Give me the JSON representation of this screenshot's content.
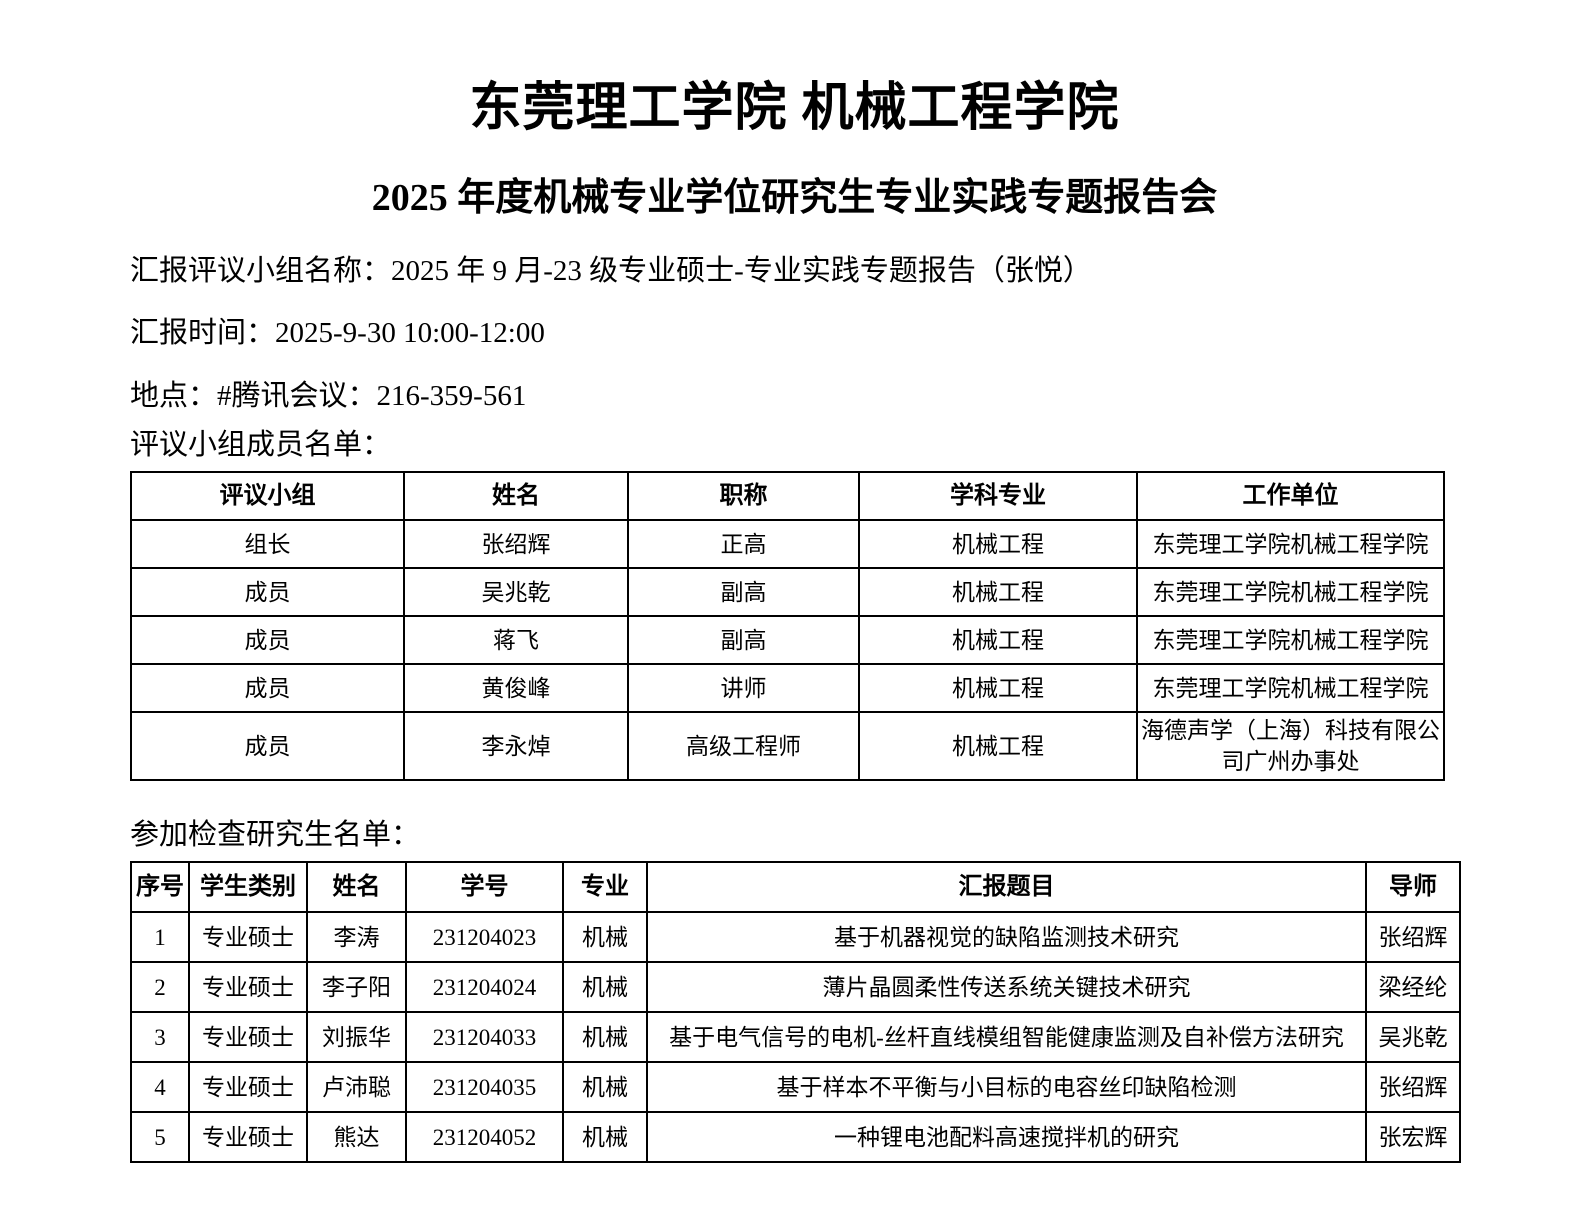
{
  "colors": {
    "text": "#000000",
    "background": "#ffffff"
  },
  "doc": {
    "title": "东莞理工学院 机械工程学院",
    "subtitle": "2025 年度机械专业学位研究生专业实践专题报告会",
    "info_lines": [
      "汇报评议小组名称：2025 年 9 月-23 级专业硕士-专业实践专题报告（张悦）",
      "汇报时间：2025-9-30 10:00-12:00",
      "地点：#腾讯会议：216-359-561"
    ],
    "committee_section_label": "评议小组成员名单：",
    "students_section_label": "参加检查研究生名单："
  },
  "committee_table": {
    "headers": [
      "评议小组",
      "姓名",
      "职称",
      "学科专业",
      "工作单位"
    ],
    "rows": [
      [
        "组长",
        "张绍辉",
        "正高",
        "机械工程",
        "东莞理工学院机械工程学院"
      ],
      [
        "成员",
        "吴兆乾",
        "副高",
        "机械工程",
        "东莞理工学院机械工程学院"
      ],
      [
        "成员",
        "蒋飞",
        "副高",
        "机械工程",
        "东莞理工学院机械工程学院"
      ],
      [
        "成员",
        "黄俊峰",
        "讲师",
        "机械工程",
        "东莞理工学院机械工程学院"
      ],
      [
        "成员",
        "李永焯",
        "高级工程师",
        "机械工程",
        "海德声学（上海）科技有限公司广州办事处"
      ]
    ]
  },
  "students_table": {
    "headers": [
      "序号",
      "学生类别",
      "姓名",
      "学号",
      "专业",
      "汇报题目",
      "导师"
    ],
    "rows": [
      [
        "1",
        "专业硕士",
        "李涛",
        "231204023",
        "机械",
        "基于机器视觉的缺陷监测技术研究",
        "张绍辉"
      ],
      [
        "2",
        "专业硕士",
        "李子阳",
        "231204024",
        "机械",
        "薄片晶圆柔性传送系统关键技术研究",
        "梁经纶"
      ],
      [
        "3",
        "专业硕士",
        "刘振华",
        "231204033",
        "机械",
        "基于电气信号的电机-丝杆直线模组智能健康监测及自补偿方法研究",
        "吴兆乾"
      ],
      [
        "4",
        "专业硕士",
        "卢沛聪",
        "231204035",
        "机械",
        "基于样本不平衡与小目标的电容丝印缺陷检测",
        "张绍辉"
      ],
      [
        "5",
        "专业硕士",
        "熊达",
        "231204052",
        "机械",
        "一种锂电池配料高速搅拌机的研究",
        "张宏辉"
      ]
    ]
  }
}
